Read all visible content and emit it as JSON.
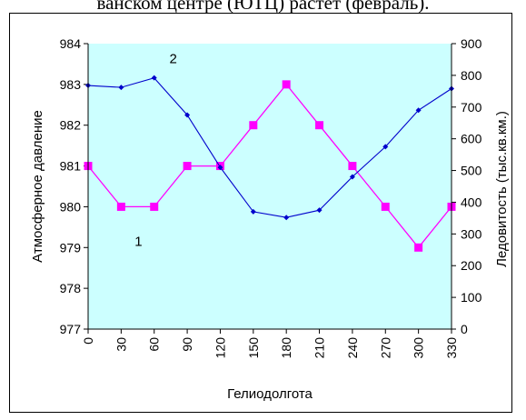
{
  "header_text": "ванском центре (ЮТЦ) растет (февраль).",
  "chart_data": {
    "type": "line",
    "x": [
      0,
      30,
      60,
      90,
      120,
      150,
      180,
      210,
      240,
      270,
      300,
      330
    ],
    "x_tick_labels": [
      "0",
      "30",
      "60",
      "90",
      "120",
      "150",
      "180",
      "210",
      "240",
      "270",
      "300",
      "330"
    ],
    "xlabel": "Гелиодолгота",
    "ylabel_left": "Атмосферное давление",
    "ylabel_right": "Ледовитость (тыс.кв.км.)",
    "ylim_left": [
      977,
      984
    ],
    "ylim_right": [
      0,
      900
    ],
    "yticks_left": [
      "977",
      "978",
      "979",
      "980",
      "981",
      "982",
      "983",
      "984"
    ],
    "yticks_right": [
      "0",
      "100",
      "200",
      "300",
      "400",
      "500",
      "600",
      "700",
      "800",
      "900"
    ],
    "grid": false,
    "plot_background": "#ccffff",
    "series": [
      {
        "name": "1",
        "axis": "left",
        "color": "#ff00ff",
        "marker": "square",
        "values": [
          981,
          980,
          980,
          981,
          981,
          982,
          983,
          982,
          981,
          980,
          979,
          980
        ]
      },
      {
        "name": "2",
        "axis": "right",
        "color": "#0000cc",
        "marker": "diamond",
        "values": [
          768,
          762,
          792,
          675,
          510,
          370,
          352,
          375,
          480,
          575,
          690,
          758
        ]
      }
    ],
    "annotations": [
      {
        "text": "2",
        "series": 1,
        "near_x": 60
      },
      {
        "text": "1",
        "series": 0,
        "near_x": 30
      }
    ]
  }
}
